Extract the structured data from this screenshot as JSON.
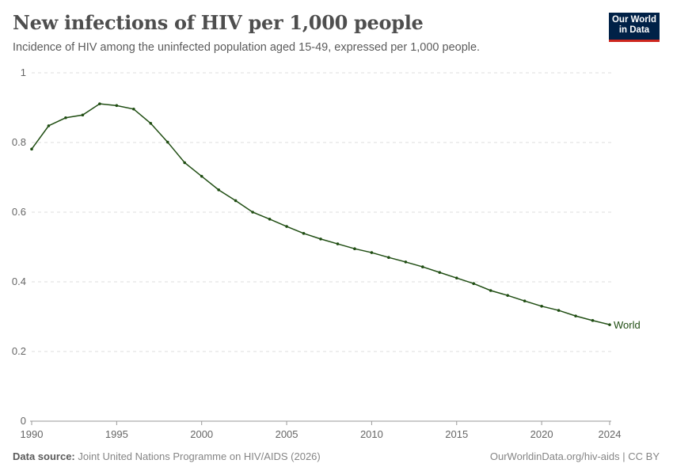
{
  "header": {
    "title": "New infections of HIV per 1,000 people",
    "subtitle": "Incidence of HIV among the uninfected population aged 15-49, expressed per 1,000 people.",
    "logo_line1": "Our World",
    "logo_line2": "in Data"
  },
  "footer": {
    "source_label": "Data source:",
    "source": "Joint United Nations Programme on HIV/AIDS (2026)",
    "url": "OurWorldinData.org/hiv-aids | CC BY"
  },
  "chart_data": {
    "type": "line",
    "title": "New infections of HIV per 1,000 people",
    "xlim": [
      1990,
      2024
    ],
    "ylim": [
      0,
      1
    ],
    "x_ticks": [
      1990,
      1995,
      2000,
      2005,
      2010,
      2015,
      2020,
      2024
    ],
    "y_ticks": [
      0,
      0.2,
      0.4,
      0.6,
      0.8,
      1
    ],
    "y_tick_labels": [
      "0",
      "0.2",
      "0.4",
      "0.6",
      "0.8",
      "1"
    ],
    "grid": "horizontal dashed",
    "series": [
      {
        "name": "World",
        "color": "#1f4d12",
        "x": [
          1990,
          1991,
          1992,
          1993,
          1994,
          1995,
          1996,
          1997,
          1998,
          1999,
          2000,
          2001,
          2002,
          2003,
          2004,
          2005,
          2006,
          2007,
          2008,
          2009,
          2010,
          2011,
          2012,
          2013,
          2014,
          2015,
          2016,
          2017,
          2018,
          2019,
          2020,
          2021,
          2022,
          2023,
          2024
        ],
        "values": [
          0.781,
          0.848,
          0.871,
          0.879,
          0.911,
          0.906,
          0.896,
          0.855,
          0.801,
          0.742,
          0.703,
          0.664,
          0.633,
          0.6,
          0.58,
          0.559,
          0.539,
          0.523,
          0.509,
          0.495,
          0.484,
          0.47,
          0.457,
          0.443,
          0.427,
          0.411,
          0.395,
          0.375,
          0.361,
          0.345,
          0.33,
          0.318,
          0.302,
          0.289,
          0.277
        ]
      }
    ]
  }
}
